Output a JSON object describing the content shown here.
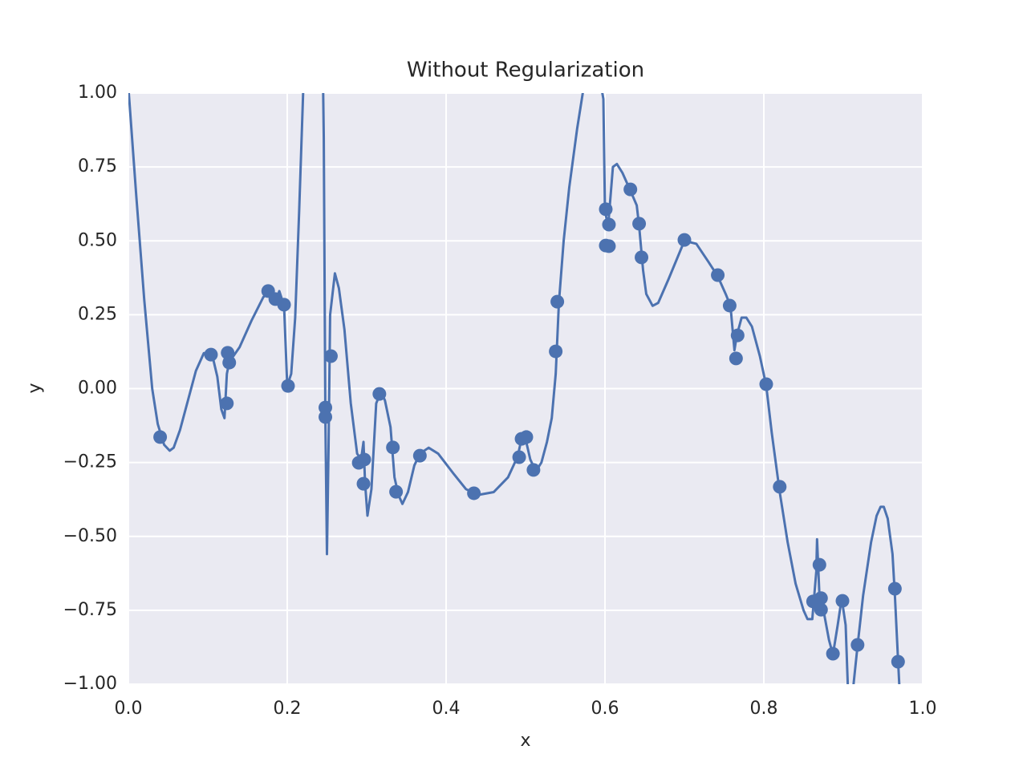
{
  "chart_data": {
    "type": "scatter",
    "title": "Without Regularization",
    "x_label": "x",
    "y_label": "y",
    "xlim": [
      0,
      1
    ],
    "ylim": [
      -1,
      1
    ],
    "xticks": [
      {
        "value": 0,
        "label": "0.0"
      },
      0.2,
      0.4,
      0.6,
      0.8,
      {
        "value": 1,
        "label": "1.0"
      }
    ],
    "yticks": [
      {
        "value": -1,
        "label": "−1.00"
      },
      {
        "value": -0.75,
        "label": "−0.75"
      },
      {
        "value": -0.5,
        "label": "−0.50"
      },
      {
        "value": -0.25,
        "label": "−0.25"
      },
      {
        "value": 0,
        "label": "0.00"
      },
      {
        "value": 0.25,
        "label": "0.25"
      },
      {
        "value": 0.5,
        "label": "0.50"
      },
      {
        "value": 0.75,
        "label": "0.75"
      },
      {
        "value": 1,
        "label": "1.00"
      }
    ],
    "grid": true,
    "background": "#eaeaf2",
    "series": [
      {
        "type": "line",
        "color": "#4c72b0",
        "x": [
          0.0,
          0.01,
          0.02,
          0.03,
          0.037,
          0.045,
          0.052,
          0.057,
          0.065,
          0.075,
          0.085,
          0.095,
          0.105,
          0.112,
          0.117,
          0.121,
          0.124,
          0.127,
          0.14,
          0.155,
          0.17,
          0.18,
          0.186,
          0.19,
          0.196,
          0.2,
          0.205,
          0.21,
          0.215,
          0.22,
          0.224,
          0.24,
          0.245,
          0.246,
          0.248,
          0.25,
          0.252,
          0.254,
          0.26,
          0.265,
          0.272,
          0.28,
          0.288,
          0.293,
          0.296,
          0.298,
          0.301,
          0.306,
          0.312,
          0.318,
          0.323,
          0.33,
          0.335,
          0.34,
          0.345,
          0.352,
          0.36,
          0.367,
          0.378,
          0.39,
          0.41,
          0.425,
          0.44,
          0.46,
          0.478,
          0.49,
          0.495,
          0.5,
          0.506,
          0.513,
          0.52,
          0.527,
          0.533,
          0.538,
          0.542,
          0.548,
          0.555,
          0.565,
          0.575,
          0.59,
          0.598,
          0.6,
          0.604,
          0.61,
          0.615,
          0.622,
          0.632,
          0.64,
          0.643,
          0.648,
          0.652,
          0.66,
          0.667,
          0.68,
          0.7,
          0.715,
          0.73,
          0.742,
          0.752,
          0.758,
          0.763,
          0.766,
          0.772,
          0.778,
          0.785,
          0.795,
          0.803,
          0.81,
          0.82,
          0.83,
          0.84,
          0.85,
          0.855,
          0.861,
          0.866,
          0.867,
          0.87,
          0.873,
          0.882,
          0.887,
          0.893,
          0.898,
          0.903,
          0.907,
          0.911,
          0.918,
          0.925,
          0.935,
          0.942,
          0.947,
          0.951,
          0.956,
          0.962,
          0.965,
          0.969,
          0.972
        ],
        "values": [
          1.02,
          0.65,
          0.3,
          0.0,
          -0.12,
          -0.19,
          -0.21,
          -0.2,
          -0.14,
          -0.04,
          0.06,
          0.12,
          0.12,
          0.04,
          -0.07,
          -0.1,
          0.05,
          0.09,
          0.14,
          0.23,
          0.31,
          0.33,
          0.3,
          0.33,
          0.28,
          0.01,
          0.05,
          0.24,
          0.6,
          1.0,
          1.2,
          1.3,
          1.05,
          0.85,
          -0.1,
          -0.56,
          -0.2,
          0.25,
          0.39,
          0.34,
          0.2,
          -0.05,
          -0.22,
          -0.24,
          -0.18,
          -0.32,
          -0.43,
          -0.34,
          -0.05,
          -0.01,
          -0.04,
          -0.13,
          -0.3,
          -0.36,
          -0.39,
          -0.35,
          -0.26,
          -0.22,
          -0.2,
          -0.22,
          -0.29,
          -0.34,
          -0.36,
          -0.35,
          -0.3,
          -0.23,
          -0.17,
          -0.17,
          -0.24,
          -0.28,
          -0.25,
          -0.18,
          -0.1,
          0.05,
          0.29,
          0.5,
          0.68,
          0.88,
          1.05,
          1.1,
          0.98,
          0.6,
          0.55,
          0.75,
          0.76,
          0.73,
          0.67,
          0.62,
          0.55,
          0.4,
          0.32,
          0.28,
          0.29,
          0.37,
          0.5,
          0.49,
          0.43,
          0.38,
          0.32,
          0.28,
          0.13,
          0.18,
          0.24,
          0.24,
          0.21,
          0.11,
          0.01,
          -0.15,
          -0.35,
          -0.52,
          -0.66,
          -0.75,
          -0.78,
          -0.78,
          -0.62,
          -0.51,
          -0.7,
          -0.72,
          -0.85,
          -0.9,
          -0.8,
          -0.71,
          -0.8,
          -1.1,
          -1.05,
          -0.87,
          -0.7,
          -0.52,
          -0.43,
          -0.4,
          -0.4,
          -0.44,
          -0.56,
          -0.7,
          -0.92,
          -1.08
        ]
      },
      {
        "type": "scatter",
        "color": "#4c72b0",
        "x": [
          0.04,
          0.104,
          0.125,
          0.124,
          0.127,
          0.176,
          0.185,
          0.196,
          0.201,
          0.248,
          0.248,
          0.255,
          0.29,
          0.297,
          0.296,
          0.316,
          0.333,
          0.337,
          0.367,
          0.435,
          0.492,
          0.495,
          0.501,
          0.51,
          0.538,
          0.54,
          0.601,
          0.601,
          0.605,
          0.605,
          0.632,
          0.643,
          0.646,
          0.7,
          0.742,
          0.757,
          0.767,
          0.765,
          0.803,
          0.82,
          0.862,
          0.87,
          0.872,
          0.872,
          0.887,
          0.899,
          0.918,
          0.965,
          0.969
        ],
        "values": [
          -0.164,
          0.115,
          0.121,
          -0.05,
          0.088,
          0.33,
          0.303,
          0.284,
          0.009,
          -0.064,
          -0.096,
          0.11,
          -0.251,
          -0.24,
          -0.322,
          -0.018,
          -0.199,
          -0.349,
          -0.227,
          -0.354,
          -0.232,
          -0.17,
          -0.164,
          -0.275,
          0.126,
          0.294,
          0.607,
          0.484,
          0.482,
          0.555,
          0.674,
          0.558,
          0.444,
          0.503,
          0.384,
          0.281,
          0.18,
          0.102,
          0.015,
          -0.332,
          -0.72,
          -0.596,
          -0.709,
          -0.748,
          -0.897,
          -0.718,
          -0.867,
          -0.677,
          -0.924
        ]
      }
    ]
  }
}
